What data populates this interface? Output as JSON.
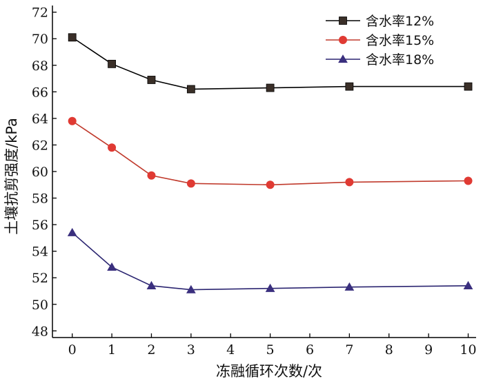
{
  "chart_data": {
    "type": "line",
    "title": "",
    "xlabel": "冻融循环次数/次",
    "ylabel": "土壤抗剪强度/kPa",
    "xlim": [
      -0.5,
      10.2
    ],
    "ylim": [
      47.5,
      72.5
    ],
    "x_ticks": [
      0,
      1,
      2,
      3,
      4,
      5,
      6,
      7,
      8,
      9,
      10
    ],
    "y_ticks": [
      48,
      50,
      52,
      54,
      56,
      58,
      60,
      62,
      64,
      66,
      68,
      70,
      72
    ],
    "grid": false,
    "legend_position": "top-right",
    "series": [
      {
        "name": "含水率12%",
        "marker": "square",
        "color": "#000000",
        "marker_color": "#3a2f28",
        "x": [
          0,
          1,
          2,
          3,
          5,
          7,
          10
        ],
        "y": [
          70.1,
          68.1,
          66.9,
          66.2,
          66.3,
          66.4,
          66.4
        ]
      },
      {
        "name": "含水率15%",
        "marker": "circle",
        "color": "#c0392b",
        "marker_color": "#e03a33",
        "x": [
          0,
          1,
          2,
          3,
          5,
          7,
          10
        ],
        "y": [
          63.8,
          61.8,
          59.7,
          59.1,
          59.0,
          59.2,
          59.3
        ]
      },
      {
        "name": "含水率18%",
        "marker": "triangle",
        "color": "#2a2470",
        "marker_color": "#3a2f7e",
        "x": [
          0,
          1,
          2,
          3,
          5,
          7,
          10
        ],
        "y": [
          55.4,
          52.8,
          51.4,
          51.1,
          51.2,
          51.3,
          51.4
        ]
      }
    ]
  }
}
